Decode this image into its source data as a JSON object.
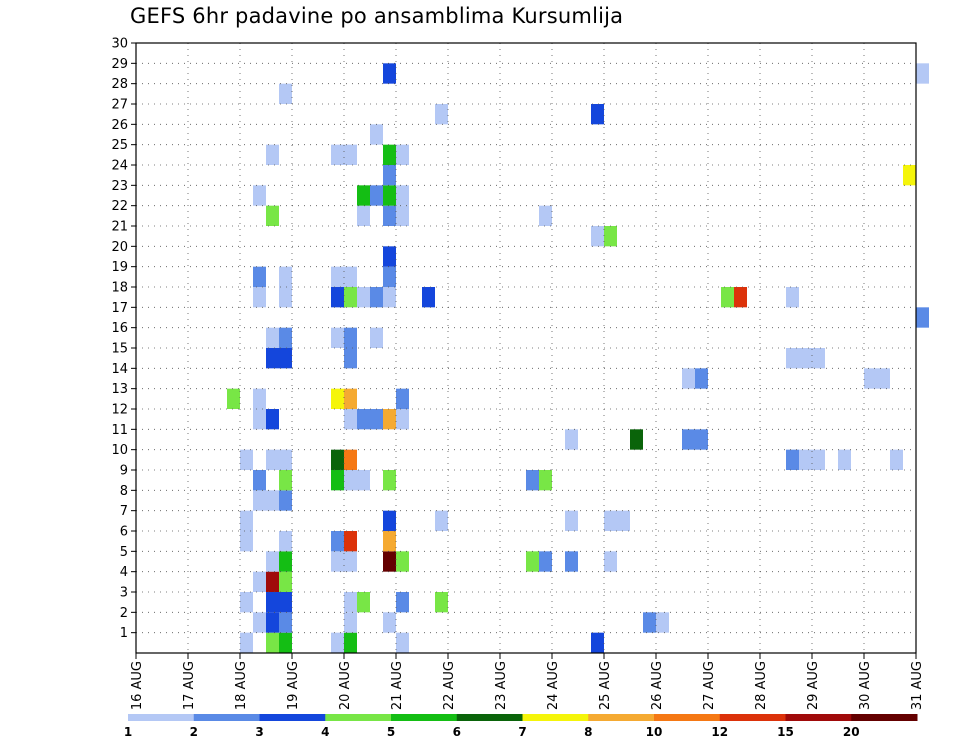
{
  "chart_data": {
    "type": "heatmap",
    "title": "GEFS 6hr padavine po ansamblima Kursumlija",
    "y_ticks": [
      1,
      2,
      3,
      4,
      5,
      6,
      7,
      8,
      9,
      10,
      11,
      12,
      13,
      14,
      15,
      16,
      17,
      18,
      19,
      20,
      21,
      22,
      23,
      24,
      25,
      26,
      27,
      28,
      29,
      30
    ],
    "x_ticks": [
      "16 AUG",
      "17 AUG",
      "18 AUG",
      "19 AUG",
      "20 AUG",
      "21 AUG",
      "22 AUG",
      "23 AUG",
      "24 AUG",
      "25 AUG",
      "26 AUG",
      "27 AUG",
      "28 AUG",
      "29 AUG",
      "30 AUG",
      "31 AUG"
    ],
    "x_range_days": [
      16,
      31
    ],
    "y_range": [
      0,
      30
    ],
    "grid": true,
    "colorbar": {
      "levels": [
        "1",
        "2",
        "3",
        "4",
        "5",
        "6",
        "7",
        "8",
        "10",
        "12",
        "15",
        "20"
      ],
      "colors": [
        "#b4c8f5",
        "#5a8ae6",
        "#1446dc",
        "#78e646",
        "#14be14",
        "#0a640a",
        "#f5f50a",
        "#f5aa32",
        "#f57814",
        "#dc320a",
        "#a00a0a",
        "#640000"
      ]
    },
    "cells_format": "[day_offset_from_16_AUG (6h steps of 0.25), member, color_index]",
    "cells": [
      [
        2.0,
        0,
        0
      ],
      [
        2.5,
        0,
        3
      ],
      [
        2.75,
        0,
        4
      ],
      [
        3.75,
        0,
        0
      ],
      [
        4.0,
        0,
        4
      ],
      [
        5.0,
        0,
        0
      ],
      [
        8.75,
        0,
        2
      ],
      [
        2.25,
        1,
        0
      ],
      [
        2.5,
        1,
        2
      ],
      [
        2.75,
        1,
        1
      ],
      [
        4.0,
        1,
        0
      ],
      [
        4.75,
        1,
        0
      ],
      [
        9.75,
        1,
        1
      ],
      [
        10.0,
        1,
        0
      ],
      [
        2.0,
        2,
        0
      ],
      [
        2.5,
        2,
        2
      ],
      [
        2.75,
        2,
        2
      ],
      [
        4.0,
        2,
        0
      ],
      [
        4.25,
        2,
        3
      ],
      [
        5.0,
        2,
        1
      ],
      [
        5.75,
        2,
        3
      ],
      [
        2.25,
        3,
        0
      ],
      [
        2.5,
        3,
        10
      ],
      [
        2.75,
        3,
        3
      ],
      [
        2.5,
        4,
        0
      ],
      [
        2.75,
        4,
        4
      ],
      [
        3.75,
        4,
        0
      ],
      [
        4.0,
        4,
        0
      ],
      [
        4.75,
        4,
        11
      ],
      [
        5.0,
        4,
        3
      ],
      [
        7.5,
        4,
        3
      ],
      [
        7.75,
        4,
        1
      ],
      [
        8.25,
        4,
        1
      ],
      [
        9.0,
        4,
        0
      ],
      [
        2.0,
        5,
        0
      ],
      [
        2.75,
        5,
        0
      ],
      [
        3.75,
        5,
        1
      ],
      [
        4.0,
        5,
        9
      ],
      [
        4.75,
        5,
        7
      ],
      [
        2.0,
        6,
        0
      ],
      [
        4.75,
        6,
        2
      ],
      [
        5.75,
        6,
        0
      ],
      [
        8.25,
        6,
        0
      ],
      [
        9.0,
        6,
        0
      ],
      [
        9.25,
        6,
        0
      ],
      [
        2.25,
        7,
        0
      ],
      [
        2.5,
        7,
        0
      ],
      [
        2.75,
        7,
        1
      ],
      [
        2.25,
        8,
        1
      ],
      [
        2.75,
        8,
        3
      ],
      [
        3.75,
        8,
        4
      ],
      [
        4.0,
        8,
        0
      ],
      [
        4.25,
        8,
        0
      ],
      [
        4.75,
        8,
        3
      ],
      [
        7.5,
        8,
        1
      ],
      [
        7.75,
        8,
        3
      ],
      [
        2.0,
        9,
        0
      ],
      [
        2.5,
        9,
        0
      ],
      [
        2.75,
        9,
        0
      ],
      [
        3.75,
        9,
        5
      ],
      [
        4.0,
        9,
        8
      ],
      [
        12.5,
        9,
        1
      ],
      [
        12.75,
        9,
        0
      ],
      [
        13.0,
        9,
        0
      ],
      [
        13.5,
        9,
        0
      ],
      [
        14.5,
        9,
        0
      ],
      [
        8.25,
        10,
        0
      ],
      [
        9.5,
        10,
        5
      ],
      [
        10.5,
        10,
        1
      ],
      [
        10.75,
        10,
        1
      ],
      [
        2.25,
        11,
        0
      ],
      [
        2.5,
        11,
        2
      ],
      [
        4.0,
        11,
        0
      ],
      [
        4.25,
        11,
        1
      ],
      [
        4.5,
        11,
        1
      ],
      [
        4.75,
        11,
        7
      ],
      [
        5.0,
        11,
        0
      ],
      [
        1.75,
        12,
        3
      ],
      [
        2.25,
        12,
        0
      ],
      [
        3.75,
        12,
        6
      ],
      [
        4.0,
        12,
        7
      ],
      [
        5.0,
        12,
        1
      ],
      [
        10.5,
        13,
        0
      ],
      [
        10.75,
        13,
        1
      ],
      [
        14.0,
        13,
        0
      ],
      [
        14.25,
        13,
        0
      ],
      [
        2.5,
        14,
        2
      ],
      [
        2.75,
        14,
        2
      ],
      [
        4.0,
        14,
        1
      ],
      [
        12.5,
        14,
        0
      ],
      [
        12.75,
        14,
        0
      ],
      [
        13.0,
        14,
        0
      ],
      [
        2.5,
        15,
        0
      ],
      [
        2.75,
        15,
        1
      ],
      [
        3.75,
        15,
        0
      ],
      [
        4.0,
        15,
        1
      ],
      [
        4.5,
        15,
        0
      ],
      [
        15.0,
        16,
        1
      ],
      [
        2.25,
        17,
        0
      ],
      [
        2.75,
        17,
        0
      ],
      [
        3.75,
        17,
        2
      ],
      [
        4.0,
        17,
        3
      ],
      [
        4.25,
        17,
        0
      ],
      [
        4.5,
        17,
        1
      ],
      [
        4.75,
        17,
        0
      ],
      [
        5.5,
        17,
        2
      ],
      [
        11.25,
        17,
        3
      ],
      [
        11.5,
        17,
        9
      ],
      [
        12.5,
        17,
        0
      ],
      [
        2.25,
        18,
        1
      ],
      [
        2.75,
        18,
        0
      ],
      [
        3.75,
        18,
        0
      ],
      [
        4.0,
        18,
        0
      ],
      [
        4.75,
        18,
        1
      ],
      [
        4.75,
        19,
        2
      ],
      [
        8.75,
        20,
        0
      ],
      [
        9.0,
        20,
        3
      ],
      [
        2.5,
        21,
        3
      ],
      [
        4.25,
        21,
        0
      ],
      [
        4.75,
        21,
        1
      ],
      [
        5.0,
        21,
        0
      ],
      [
        7.75,
        21,
        0
      ],
      [
        2.25,
        22,
        0
      ],
      [
        4.25,
        22,
        4
      ],
      [
        4.5,
        22,
        1
      ],
      [
        4.75,
        22,
        4
      ],
      [
        5.0,
        22,
        0
      ],
      [
        4.75,
        23,
        1
      ],
      [
        14.75,
        23,
        6
      ],
      [
        2.5,
        24,
        0
      ],
      [
        3.75,
        24,
        0
      ],
      [
        4.0,
        24,
        0
      ],
      [
        4.75,
        24,
        4
      ],
      [
        5.0,
        24,
        0
      ],
      [
        4.5,
        25,
        0
      ],
      [
        5.75,
        26,
        0
      ],
      [
        8.75,
        26,
        2
      ],
      [
        2.75,
        27,
        0
      ],
      [
        4.75,
        28,
        2
      ],
      [
        15.0,
        28,
        0
      ]
    ]
  }
}
